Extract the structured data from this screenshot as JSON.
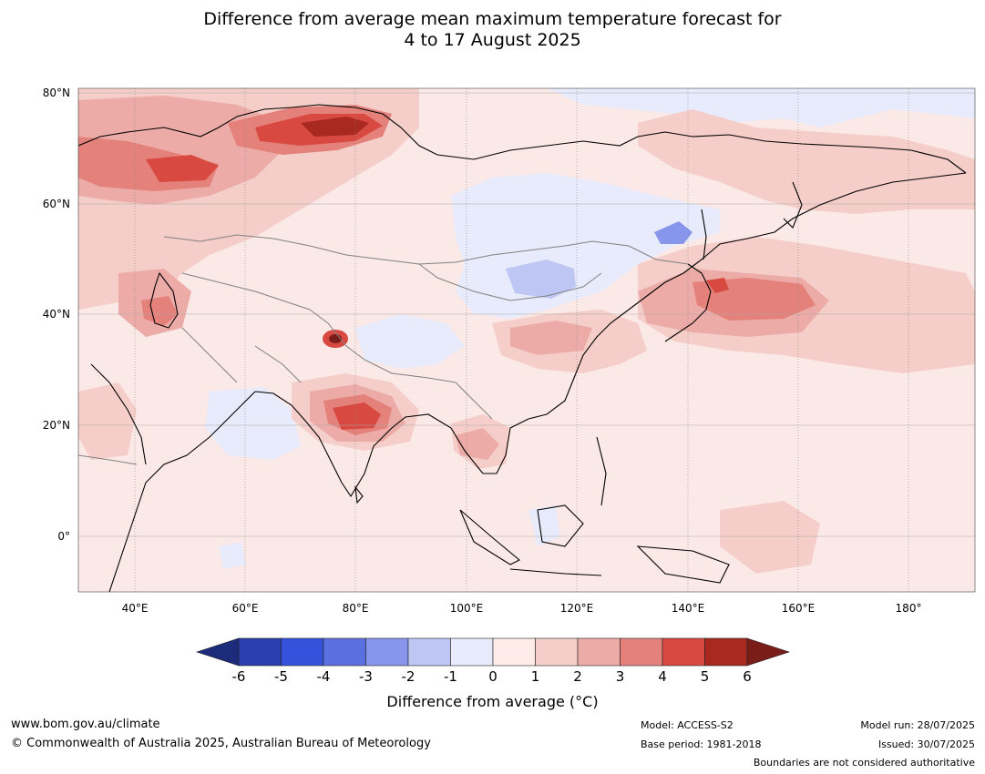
{
  "title_line1": "Difference from average mean maximum temperature forecast for",
  "title_line2": "4 to 17 August 2025",
  "map": {
    "lat_labels": [
      "80°N",
      "60°N",
      "40°N",
      "20°N",
      "0°"
    ],
    "lon_labels": [
      "40°E",
      "60°E",
      "80°E",
      "100°E",
      "120°E",
      "140°E",
      "160°E",
      "180°"
    ],
    "background_color": "#fbe9e7"
  },
  "colorbar": {
    "title": "Difference from average (°C)",
    "ticks": [
      "-6",
      "-5",
      "-4",
      "-3",
      "-2",
      "-1",
      "0",
      "1",
      "2",
      "3",
      "4",
      "5",
      "6"
    ],
    "colors": [
      "#1c2b7a",
      "#2a3fb0",
      "#3552dc",
      "#5a6fe0",
      "#8795ea",
      "#bec6f3",
      "#e8ebfb",
      "#fdecea",
      "#f5cdc9",
      "#ecaba6",
      "#e4817a",
      "#d84a41",
      "#a9281f",
      "#7a1c17"
    ]
  },
  "footer": {
    "website": "www.bom.gov.au/climate",
    "copyright": "© Commonwealth of Australia 2025, Australian Bureau of Meteorology",
    "model": "Model: ACCESS-S2",
    "base_period": "Base period: 1981-2018",
    "model_run": "Model run: 28/07/2025",
    "issued": "Issued: 30/07/2025",
    "disclaimer": "Boundaries are not considered authoritative"
  }
}
